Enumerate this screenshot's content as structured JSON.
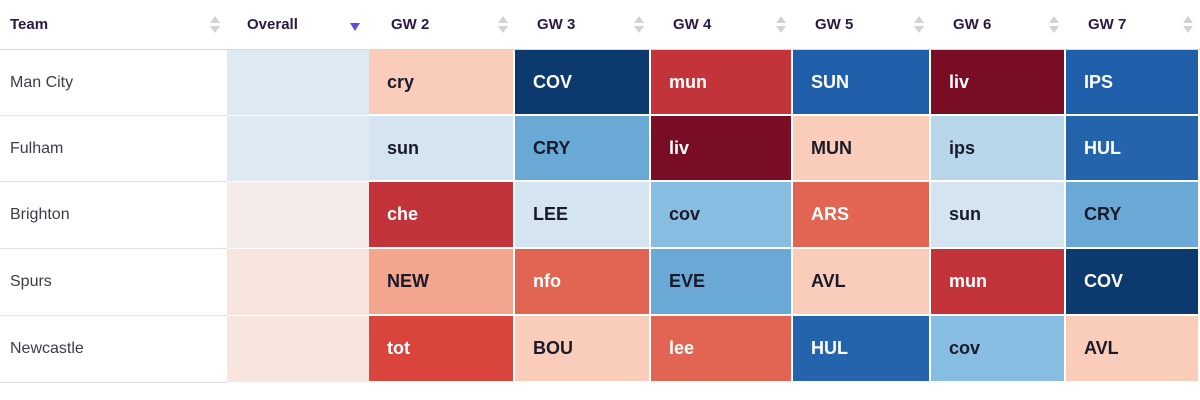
{
  "header": {
    "team": "Team",
    "overall": "Overall",
    "gameweeks": [
      "GW 2",
      "GW 3",
      "GW 4",
      "GW 5",
      "GW 6",
      "GW 7"
    ]
  },
  "rows": [
    {
      "team": "Man City",
      "overall_color": "#dde9f3",
      "fixtures": [
        {
          "label": "cry",
          "color": "#f9cdb9",
          "text": "#1a1a2a"
        },
        {
          "label": "COV",
          "color": "#0d3a6e",
          "text": "#ffffff"
        },
        {
          "label": "mun",
          "color": "#c3343a",
          "text": "#ffffff"
        },
        {
          "label": "SUN",
          "color": "#1f5ea8",
          "text": "#ffffff"
        },
        {
          "label": "liv",
          "color": "#7a0d26",
          "text": "#ffffff"
        },
        {
          "label": "IPS",
          "color": "#1f5ea8",
          "text": "#ffffff"
        }
      ]
    },
    {
      "team": "Fulham",
      "overall_color": "#dde9f3",
      "fixtures": [
        {
          "label": "sun",
          "color": "#d4e5f1",
          "text": "#1a1a2a"
        },
        {
          "label": "CRY",
          "color": "#6aa9d5",
          "text": "#1a1a2a"
        },
        {
          "label": "liv",
          "color": "#7a0d26",
          "text": "#ffffff"
        },
        {
          "label": "MUN",
          "color": "#f9cdb9",
          "text": "#1a1a2a"
        },
        {
          "label": "ips",
          "color": "#b7d6ea",
          "text": "#1a1a2a"
        },
        {
          "label": "HUL",
          "color": "#2464ad",
          "text": "#ffffff"
        }
      ]
    },
    {
      "team": "Brighton",
      "overall_color": "#f5ebe9",
      "fixtures": [
        {
          "label": "che",
          "color": "#c3343a",
          "text": "#ffffff"
        },
        {
          "label": "LEE",
          "color": "#d4e5f1",
          "text": "#1a1a2a"
        },
        {
          "label": "cov",
          "color": "#87bde0",
          "text": "#1a1a2a"
        },
        {
          "label": "ARS",
          "color": "#e16552",
          "text": "#ffffff"
        },
        {
          "label": "sun",
          "color": "#d4e5f1",
          "text": "#1a1a2a"
        },
        {
          "label": "CRY",
          "color": "#6aa9d5",
          "text": "#1a1a2a"
        }
      ]
    },
    {
      "team": "Spurs",
      "overall_color": "#f7e5de",
      "fixtures": [
        {
          "label": "NEW",
          "color": "#f3a58e",
          "text": "#1a1a2a"
        },
        {
          "label": "nfo",
          "color": "#e16552",
          "text": "#ffffff"
        },
        {
          "label": "EVE",
          "color": "#6aa9d5",
          "text": "#1a1a2a"
        },
        {
          "label": "AVL",
          "color": "#f9cdb9",
          "text": "#1a1a2a"
        },
        {
          "label": "mun",
          "color": "#c3343a",
          "text": "#ffffff"
        },
        {
          "label": "COV",
          "color": "#0d3a6e",
          "text": "#ffffff"
        }
      ]
    },
    {
      "team": "Newcastle",
      "overall_color": "#f7e5de",
      "fixtures": [
        {
          "label": "tot",
          "color": "#d9453c",
          "text": "#ffffff"
        },
        {
          "label": "BOU",
          "color": "#f9cdb9",
          "text": "#1a1a2a"
        },
        {
          "label": "lee",
          "color": "#e16552",
          "text": "#ffffff"
        },
        {
          "label": "HUL",
          "color": "#2464ad",
          "text": "#ffffff"
        },
        {
          "label": "cov",
          "color": "#87bde0",
          "text": "#1a1a2a"
        },
        {
          "label": "AVL",
          "color": "#f9cdb9",
          "text": "#1a1a2a"
        }
      ]
    }
  ]
}
